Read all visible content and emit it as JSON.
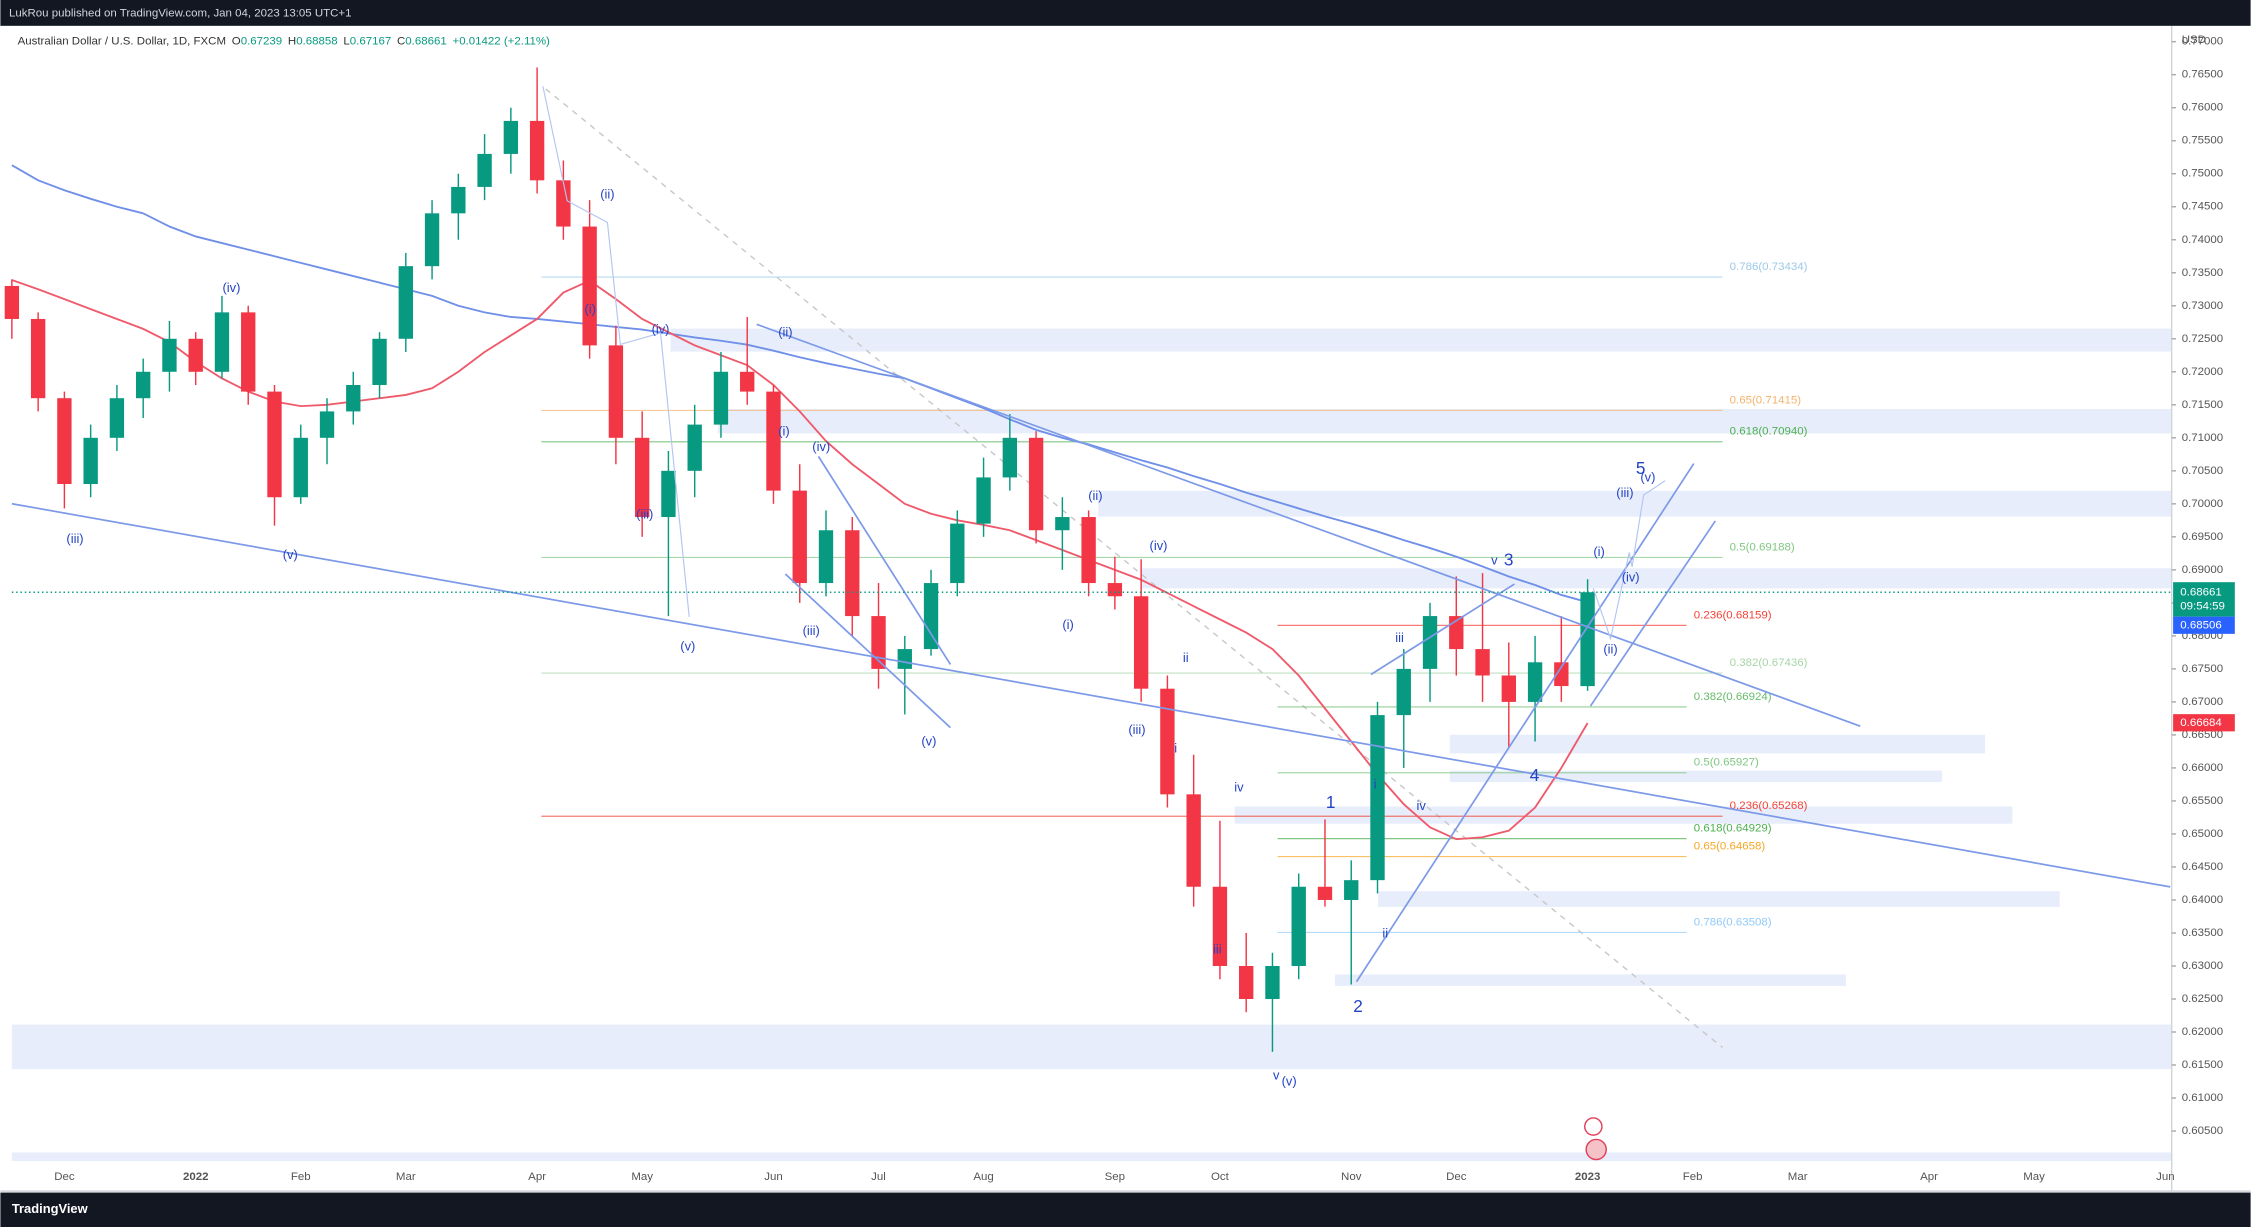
{
  "header": {
    "publisher": "LukRou published on TradingView.com, Jan 04, 2023 13:05 UTC+1",
    "brand": "TradingView"
  },
  "chart_data": {
    "type": "candlestick",
    "symbol": "Australian Dollar / U.S. Dollar, 1D, FXCM",
    "ohlc_legend": [
      {
        "key": "O",
        "value": "0.67239"
      },
      {
        "key": "H",
        "value": "0.68858"
      },
      {
        "key": "L",
        "value": "0.67167"
      },
      {
        "key": "C",
        "value": "0.68661"
      }
    ],
    "change": "+0.01422 (+2.11%)",
    "currency": "USD",
    "up_color": "#089981",
    "down_color": "#f23645",
    "categories": [
      null,
      null,
      "Dec",
      null,
      null,
      null,
      null,
      "2022",
      null,
      null,
      null,
      "Feb",
      null,
      null,
      null,
      "Mar",
      null,
      null,
      null,
      null,
      "Apr",
      null,
      null,
      null,
      "May",
      null,
      null,
      null,
      null,
      "Jun",
      null,
      null,
      null,
      "Jul",
      null,
      null,
      null,
      "Aug",
      null,
      null,
      null,
      null,
      "Sep",
      null,
      null,
      null,
      "Oct",
      null,
      null,
      null,
      null,
      "Nov",
      null,
      null,
      null,
      "Dec",
      null,
      null,
      null,
      null,
      "2023",
      null,
      null,
      null,
      "Feb",
      null,
      null,
      null,
      "Mar",
      null,
      null,
      null,
      null,
      "Apr",
      null,
      null,
      null,
      "May",
      null,
      null,
      null,
      null,
      "Jun"
    ],
    "open": [
      0.733,
      0.728,
      0.716,
      0.703,
      0.71,
      0.716,
      0.72,
      0.725,
      0.72,
      0.729,
      0.717,
      0.701,
      0.71,
      0.714,
      0.718,
      0.725,
      0.736,
      0.744,
      0.748,
      0.753,
      0.758,
      0.749,
      0.742,
      0.724,
      0.71,
      0.698,
      0.705,
      0.712,
      0.72,
      0.717,
      0.702,
      0.688,
      0.696,
      0.683,
      0.675,
      0.678,
      0.688,
      0.697,
      0.704,
      0.71,
      0.696,
      0.698,
      0.688,
      0.686,
      0.672,
      0.656,
      0.642,
      0.63,
      0.625,
      0.63,
      0.642,
      0.64,
      0.643,
      0.668,
      0.675,
      0.683,
      0.678,
      0.674,
      0.67,
      0.676,
      0.67239,
      null,
      null,
      null,
      null,
      null,
      null,
      null,
      null,
      null,
      null,
      null,
      null,
      null,
      null,
      null,
      null,
      null,
      null,
      null,
      null,
      null,
      null
    ],
    "high": [
      0.734,
      0.729,
      0.717,
      0.712,
      0.718,
      0.722,
      0.7277,
      0.726,
      0.7315,
      0.73,
      0.718,
      0.712,
      0.716,
      0.72,
      0.726,
      0.738,
      0.746,
      0.75,
      0.756,
      0.76,
      0.7661,
      0.752,
      0.746,
      0.727,
      0.714,
      0.708,
      0.715,
      0.723,
      0.7283,
      0.718,
      0.706,
      0.699,
      0.698,
      0.688,
      0.68,
      0.69,
      0.699,
      0.707,
      0.7136,
      0.711,
      0.701,
      0.699,
      0.692,
      0.6916,
      0.674,
      0.662,
      0.652,
      0.635,
      0.632,
      0.644,
      0.6522,
      0.646,
      0.67,
      0.678,
      0.685,
      0.689,
      0.6895,
      0.679,
      0.68,
      0.683,
      0.68858,
      null,
      null,
      null,
      null,
      null,
      null,
      null,
      null,
      null,
      null,
      null,
      null,
      null,
      null,
      null,
      null,
      null,
      null,
      null,
      null,
      null,
      null
    ],
    "low": [
      0.725,
      0.714,
      0.6993,
      0.701,
      0.708,
      0.713,
      0.717,
      0.718,
      0.719,
      0.715,
      0.6967,
      0.7,
      0.706,
      0.712,
      0.716,
      0.723,
      0.734,
      0.74,
      0.746,
      0.75,
      0.747,
      0.74,
      0.722,
      0.706,
      0.695,
      0.683,
      0.701,
      0.71,
      0.715,
      0.7,
      0.685,
      0.686,
      0.68,
      0.672,
      0.6681,
      0.677,
      0.686,
      0.695,
      0.702,
      0.694,
      0.69,
      0.686,
      0.684,
      0.67,
      0.654,
      0.639,
      0.628,
      0.623,
      0.617,
      0.628,
      0.639,
      0.6272,
      0.641,
      0.66,
      0.67,
      0.674,
      0.67,
      0.663,
      0.664,
      0.67,
      0.67167,
      null,
      null,
      null,
      null,
      null,
      null,
      null,
      null,
      null,
      null,
      null,
      null,
      null,
      null,
      null,
      null,
      null,
      null,
      null,
      null,
      null,
      null
    ],
    "close": [
      0.728,
      0.716,
      0.703,
      0.71,
      0.716,
      0.72,
      0.725,
      0.72,
      0.729,
      0.717,
      0.701,
      0.71,
      0.714,
      0.718,
      0.725,
      0.736,
      0.744,
      0.748,
      0.753,
      0.758,
      0.749,
      0.742,
      0.724,
      0.71,
      0.698,
      0.705,
      0.712,
      0.72,
      0.717,
      0.702,
      0.688,
      0.696,
      0.683,
      0.675,
      0.678,
      0.688,
      0.697,
      0.704,
      0.71,
      0.696,
      0.698,
      0.688,
      0.686,
      0.672,
      0.656,
      0.642,
      0.63,
      0.625,
      0.63,
      0.642,
      0.64,
      0.643,
      0.668,
      0.675,
      0.683,
      0.678,
      0.674,
      0.67,
      0.676,
      0.6724,
      0.68661,
      null,
      null,
      null,
      null,
      null,
      null,
      null,
      null,
      null,
      null,
      null,
      null,
      null,
      null,
      null,
      null,
      null,
      null,
      null,
      null,
      null,
      null
    ],
    "overlays": [
      {
        "color": "#6f8fe8",
        "values": [
          0.7513,
          0.749,
          0.7475,
          0.7462,
          0.745,
          0.744,
          0.742,
          0.7405,
          0.7395,
          0.7385,
          0.7375,
          0.7365,
          0.7355,
          0.7345,
          0.7335,
          0.7325,
          0.7315,
          0.73,
          0.729,
          0.7283,
          0.728,
          0.7276,
          0.7272,
          0.7268,
          0.7264,
          0.7258,
          0.7252,
          0.7247,
          0.7241,
          0.7232,
          0.7222,
          0.7213,
          0.7205,
          0.7197,
          0.719,
          0.7175,
          0.716,
          0.7145,
          0.7128,
          0.7112,
          0.71,
          0.709,
          0.7078,
          0.7066,
          0.7055,
          0.7042,
          0.703,
          0.7017,
          0.7005,
          0.6993,
          0.6981,
          0.697,
          0.6958,
          0.6945,
          0.6933,
          0.692,
          0.6905,
          0.689,
          0.6877,
          0.6862,
          0.6851,
          null,
          null,
          null,
          null,
          null,
          null,
          null,
          null,
          null,
          null,
          null,
          null,
          null,
          null,
          null,
          null,
          null,
          null,
          null,
          null,
          null,
          null
        ]
      },
      {
        "color": "#ef5a6b",
        "values": [
          0.7339,
          0.7325,
          0.731,
          0.7295,
          0.728,
          0.7265,
          0.7245,
          0.7215,
          0.719,
          0.717,
          0.7155,
          0.7148,
          0.715,
          0.7155,
          0.716,
          0.7165,
          0.7175,
          0.72,
          0.723,
          0.7255,
          0.728,
          0.732,
          0.7338,
          0.731,
          0.728,
          0.726,
          0.724,
          0.7225,
          0.721,
          0.718,
          0.714,
          0.7095,
          0.706,
          0.703,
          0.7,
          0.6985,
          0.6975,
          0.6968,
          0.696,
          0.6945,
          0.693,
          0.6915,
          0.69,
          0.6885,
          0.6865,
          0.6845,
          0.6825,
          0.6805,
          0.678,
          0.674,
          0.669,
          0.664,
          0.659,
          0.6545,
          0.651,
          0.6492,
          0.6495,
          0.6505,
          0.654,
          0.66,
          0.6668,
          null,
          null,
          null,
          null,
          null,
          null,
          null,
          null,
          null,
          null,
          null,
          null,
          null,
          null,
          null,
          null,
          null,
          null,
          null,
          null,
          null,
          null
        ]
      }
    ],
    "last_price": 0.68661,
    "countdown": "09:54:59",
    "ma_prices": [
      0.68506,
      0.66684
    ],
    "ylim": [
      0.5959,
      0.7724
    ],
    "yticks": [
      {
        "value": 0.605,
        "label": "0.60500"
      },
      {
        "value": 0.61,
        "label": "0.61000"
      },
      {
        "value": 0.615,
        "label": "0.61500"
      },
      {
        "value": 0.62,
        "label": "0.62000"
      },
      {
        "value": 0.625,
        "label": "0.62500"
      },
      {
        "value": 0.63,
        "label": "0.63000"
      },
      {
        "value": 0.635,
        "label": "0.63500"
      },
      {
        "value": 0.64,
        "label": "0.64000"
      },
      {
        "value": 0.645,
        "label": "0.64500"
      },
      {
        "value": 0.65,
        "label": "0.65000"
      },
      {
        "value": 0.655,
        "label": "0.65500"
      },
      {
        "value": 0.66,
        "label": "0.66000"
      },
      {
        "value": 0.665,
        "label": "0.66500"
      },
      {
        "value": 0.67,
        "label": "0.67000"
      },
      {
        "value": 0.675,
        "label": "0.67500"
      },
      {
        "value": 0.68,
        "label": "0.68000"
      },
      {
        "value": 0.685,
        "label": "0.68500"
      },
      {
        "value": 0.69,
        "label": "0.69000"
      },
      {
        "value": 0.695,
        "label": "0.69500"
      },
      {
        "value": 0.7,
        "label": "0.70000"
      },
      {
        "value": 0.705,
        "label": "0.70500"
      },
      {
        "value": 0.71,
        "label": "0.71000"
      },
      {
        "value": 0.715,
        "label": "0.71500"
      },
      {
        "value": 0.72,
        "label": "0.72000"
      },
      {
        "value": 0.725,
        "label": "0.72500"
      },
      {
        "value": 0.73,
        "label": "0.73000"
      },
      {
        "value": 0.735,
        "label": "0.73500"
      },
      {
        "value": 0.74,
        "label": "0.74000"
      },
      {
        "value": 0.745,
        "label": "0.74500"
      },
      {
        "value": 0.75,
        "label": "0.75000"
      },
      {
        "value": 0.755,
        "label": "0.75500"
      },
      {
        "value": 0.76,
        "label": "0.76000"
      },
      {
        "value": 0.765,
        "label": "0.76500"
      },
      {
        "value": 0.77,
        "label": "0.77000"
      }
    ],
    "fib_levels": [
      {
        "label": "0.786(0.73434)",
        "price": 0.73434,
        "color": "#9cc9e6"
      },
      {
        "label": "0.65(0.71415)",
        "price": 0.71415,
        "color": "#f5b26b"
      },
      {
        "label": "0.618(0.70940)",
        "price": 0.7094,
        "color": "#4caf50"
      },
      {
        "label": "0.5(0.69188)",
        "price": 0.69188,
        "color": "#81c784"
      },
      {
        "label": "0.236(0.68159)",
        "price": 0.68159,
        "color": "#f44336"
      },
      {
        "label": "0.382(0.67436)",
        "price": 0.67436,
        "color": "#a5d6a7"
      },
      {
        "label": "0.382(0.66924)",
        "price": 0.66924,
        "color": "#66bb6a"
      },
      {
        "label": "0.5(0.65927)",
        "price": 0.65927,
        "color": "#81c784"
      },
      {
        "label": "0.236(0.65268)",
        "price": 0.65268,
        "color": "#f44336"
      },
      {
        "label": "0.618(0.64929)",
        "price": 0.64929,
        "color": "#4caf50"
      },
      {
        "label": "0.65(0.64658)",
        "price": 0.64658,
        "color": "#f5a623"
      },
      {
        "label": "0.786(0.63508)",
        "price": 0.63508,
        "color": "#90caf9"
      }
    ],
    "wave_labels": [
      "(iii)",
      "(iv)",
      "(v)",
      "(ii)",
      "(i)",
      "(iii)",
      "(iv)",
      "(v)",
      "(ii)",
      "(i)",
      "(iv)",
      "(iii)",
      "(v)",
      "(ii)",
      "(iv)",
      "(i)",
      "(iii)",
      "ii",
      "i",
      "iv",
      "iii",
      "v",
      "(v)",
      "1",
      "2",
      "iii",
      "i",
      "iv",
      "ii",
      "v",
      "3",
      "4",
      "5",
      "(v)",
      "(iii)",
      "(i)",
      "(iv)",
      "(ii)"
    ]
  }
}
